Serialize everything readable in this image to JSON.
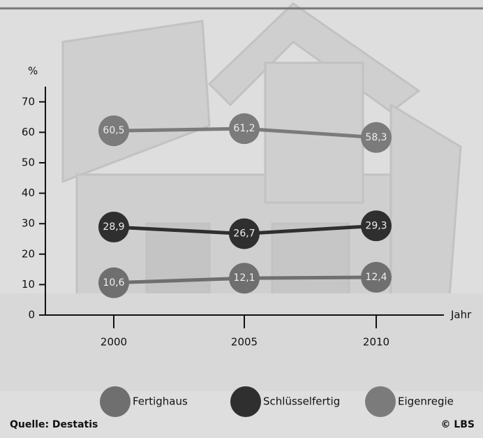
{
  "chart_data": {
    "type": "line",
    "y_label": "%",
    "x_label": "Jahr",
    "categories": [
      "2000",
      "2005",
      "2010"
    ],
    "series": [
      {
        "name": "Fertighaus",
        "color": "#6f6f6f",
        "values": [
          10.6,
          12.1,
          12.4
        ],
        "value_labels": [
          "10,6",
          "12,1",
          "12,4"
        ]
      },
      {
        "name": "Schlüsselfertig",
        "color": "#2f2f2f",
        "values": [
          28.9,
          26.7,
          29.3
        ],
        "value_labels": [
          "28,9",
          "26,7",
          "29,3"
        ]
      },
      {
        "name": "Eigenregie",
        "color": "#7b7b7b",
        "values": [
          60.5,
          61.2,
          58.3
        ],
        "value_labels": [
          "60,5",
          "61,2",
          "58,3"
        ]
      }
    ],
    "ylim": [
      0,
      75
    ],
    "yticks": [
      0,
      10,
      20,
      30,
      40,
      50,
      60,
      70
    ],
    "source": "Quelle: Destatis",
    "credit": "© LBS"
  }
}
